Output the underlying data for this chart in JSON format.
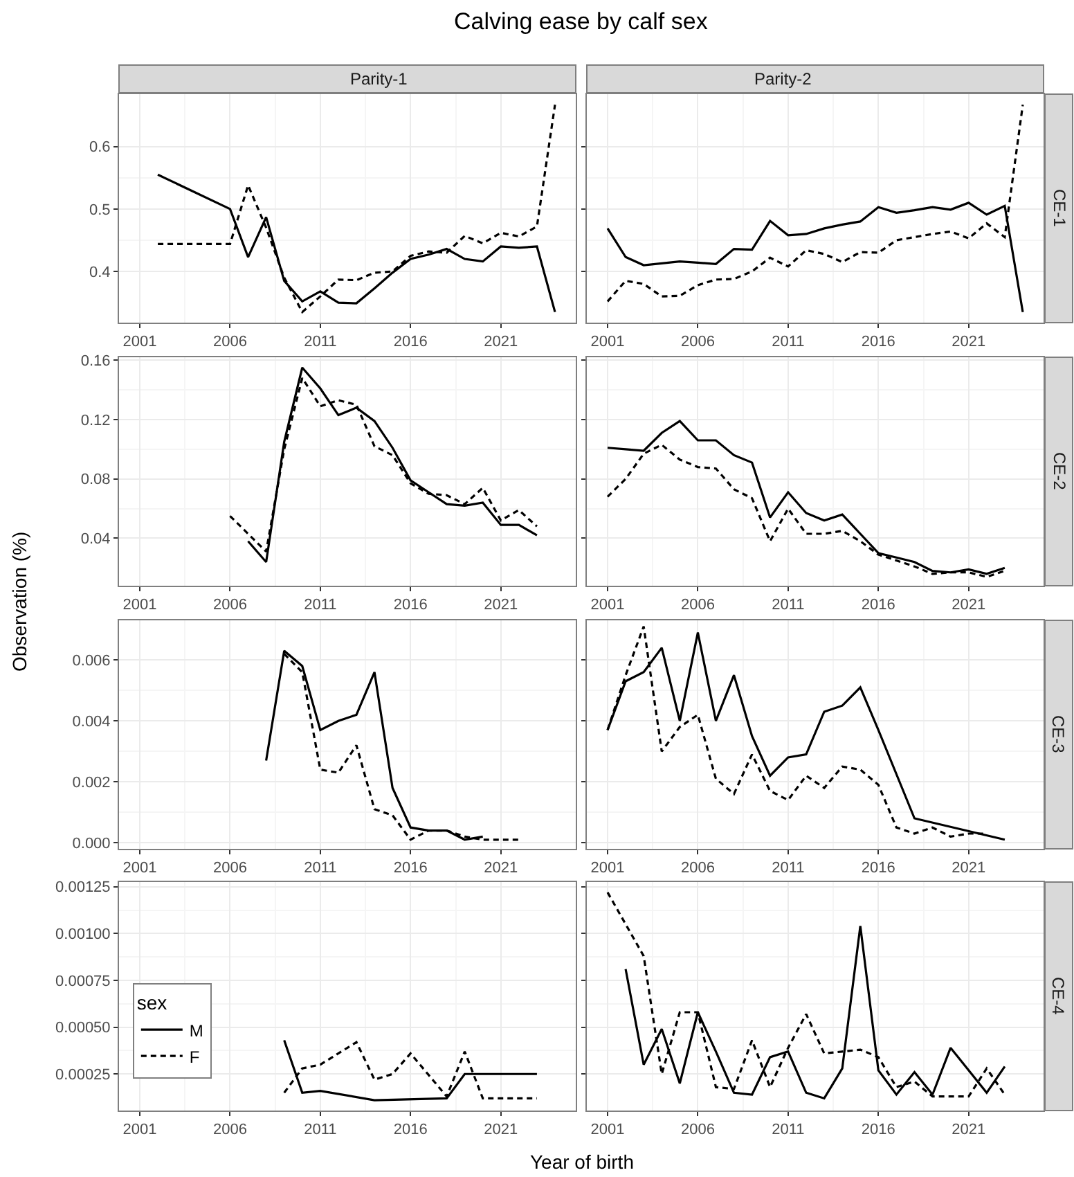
{
  "chart_data": [
    {
      "type": "other",
      "title": "Calving ease by calf sex",
      "xlabel": "Year of birth",
      "ylabel": "Observation (%)"
    },
    {
      "type": "line",
      "subtitle": "Parity-1",
      "xlim": [
        1999.85,
        2025.15
      ],
      "xticks": [
        2001,
        2006,
        2011,
        2016,
        2021
      ],
      "ylim": [
        0.318,
        0.684
      ],
      "yticks": [
        0.4,
        0.5,
        0.6
      ],
      "grid": true,
      "series": [
        {
          "color": "#000000",
          "line_style": "solid",
          "x": [
            2002,
            2006,
            2007,
            2008,
            2009,
            2010,
            2011,
            2012,
            2013,
            2014,
            2015,
            2016,
            2017,
            2018,
            2019,
            2020,
            2021,
            2022,
            2023,
            2024
          ],
          "values": [
            0.555,
            0.5,
            0.423,
            0.487,
            0.385,
            0.352,
            0.368,
            0.35,
            0.349,
            0.373,
            0.398,
            0.42,
            0.427,
            0.436,
            0.42,
            0.416,
            0.44,
            0.438,
            0.44,
            0.335
          ]
        },
        {
          "color": "#000000",
          "line_style": "dashed",
          "x": [
            2002,
            2006,
            2007,
            2008,
            2009,
            2010,
            2011,
            2012,
            2013,
            2014,
            2015,
            2016,
            2017,
            2018,
            2019,
            2020,
            2021,
            2022,
            2023,
            2024
          ],
          "values": [
            0.444,
            0.444,
            0.538,
            0.47,
            0.39,
            0.335,
            0.36,
            0.387,
            0.386,
            0.398,
            0.4,
            0.425,
            0.432,
            0.43,
            0.457,
            0.445,
            0.462,
            0.456,
            0.472,
            0.667
          ]
        }
      ]
    },
    {
      "type": "line",
      "subtitle": "Parity-2",
      "y2label": "CE-1",
      "xlim": [
        1999.85,
        2025.15
      ],
      "xticks": [
        2001,
        2006,
        2011,
        2016,
        2021
      ],
      "ylim": [
        0.318,
        0.684
      ],
      "yticks": [
        0.4,
        0.5,
        0.6
      ],
      "grid": true,
      "tick_labels": "x",
      "series": [
        {
          "color": "#000000",
          "line_style": "solid",
          "x": [
            2001,
            2002,
            2003,
            2004,
            2005,
            2006,
            2007,
            2008,
            2009,
            2010,
            2011,
            2012,
            2013,
            2014,
            2015,
            2016,
            2017,
            2018,
            2019,
            2020,
            2021,
            2022,
            2023,
            2024
          ],
          "values": [
            0.469,
            0.423,
            0.41,
            0.413,
            0.416,
            0.414,
            0.412,
            0.436,
            0.435,
            0.481,
            0.458,
            0.46,
            0.469,
            0.475,
            0.48,
            0.503,
            0.494,
            0.498,
            0.503,
            0.499,
            0.51,
            0.491,
            0.505,
            0.335
          ]
        },
        {
          "color": "#000000",
          "line_style": "dashed",
          "x": [
            2001,
            2002,
            2003,
            2004,
            2005,
            2006,
            2007,
            2008,
            2009,
            2010,
            2011,
            2012,
            2013,
            2014,
            2015,
            2016,
            2017,
            2018,
            2019,
            2020,
            2021,
            2022,
            2023,
            2024
          ],
          "values": [
            0.352,
            0.385,
            0.38,
            0.36,
            0.361,
            0.378,
            0.387,
            0.388,
            0.4,
            0.422,
            0.408,
            0.434,
            0.428,
            0.415,
            0.431,
            0.43,
            0.45,
            0.455,
            0.46,
            0.464,
            0.453,
            0.477,
            0.455,
            0.667
          ]
        }
      ]
    },
    {
      "type": "line",
      "xlim": [
        1999.85,
        2025.15
      ],
      "xticks": [
        2001,
        2006,
        2011,
        2016,
        2021
      ],
      "ylim": [
        0.008,
        0.162
      ],
      "yticks": [
        0.04,
        0.08,
        0.12,
        0.16
      ],
      "grid": true,
      "series": [
        {
          "color": "#000000",
          "line_style": "solid",
          "x": [
            2007,
            2008,
            2009,
            2010,
            2011,
            2012,
            2013,
            2014,
            2015,
            2016,
            2017,
            2018,
            2019,
            2020,
            2021,
            2022,
            2023
          ],
          "values": [
            0.038,
            0.024,
            0.105,
            0.155,
            0.141,
            0.123,
            0.128,
            0.119,
            0.101,
            0.079,
            0.071,
            0.063,
            0.062,
            0.064,
            0.049,
            0.049,
            0.042
          ]
        },
        {
          "color": "#000000",
          "line_style": "dashed",
          "x": [
            2006,
            2007,
            2008,
            2009,
            2010,
            2011,
            2012,
            2013,
            2014,
            2015,
            2016,
            2017,
            2018,
            2019,
            2020,
            2021,
            2022,
            2023
          ],
          "values": [
            0.055,
            0.043,
            0.031,
            0.1,
            0.148,
            0.129,
            0.133,
            0.13,
            0.102,
            0.096,
            0.077,
            0.07,
            0.069,
            0.063,
            0.074,
            0.052,
            0.059,
            0.048
          ]
        }
      ]
    },
    {
      "type": "line",
      "y2label": "CE-2",
      "xlim": [
        1999.85,
        2025.15
      ],
      "xticks": [
        2001,
        2006,
        2011,
        2016,
        2021
      ],
      "ylim": [
        0.008,
        0.162
      ],
      "yticks": [
        0.04,
        0.08,
        0.12,
        0.16
      ],
      "grid": true,
      "tick_labels": "x",
      "series": [
        {
          "color": "#000000",
          "line_style": "solid",
          "x": [
            2001,
            2002,
            2003,
            2004,
            2005,
            2006,
            2007,
            2008,
            2009,
            2010,
            2011,
            2012,
            2013,
            2014,
            2015,
            2016,
            2017,
            2018,
            2019,
            2020,
            2021,
            2022,
            2023
          ],
          "values": [
            0.101,
            0.1,
            0.099,
            0.111,
            0.119,
            0.106,
            0.106,
            0.096,
            0.091,
            0.054,
            0.071,
            0.057,
            0.052,
            0.056,
            0.043,
            0.03,
            0.027,
            0.024,
            0.018,
            0.017,
            0.019,
            0.016,
            0.02
          ]
        },
        {
          "color": "#000000",
          "line_style": "dashed",
          "x": [
            2001,
            2002,
            2003,
            2004,
            2005,
            2006,
            2007,
            2008,
            2009,
            2010,
            2011,
            2012,
            2013,
            2014,
            2015,
            2016,
            2017,
            2018,
            2019,
            2020,
            2021,
            2022,
            2023
          ],
          "values": [
            0.068,
            0.08,
            0.097,
            0.103,
            0.093,
            0.088,
            0.087,
            0.073,
            0.067,
            0.038,
            0.06,
            0.043,
            0.043,
            0.045,
            0.038,
            0.029,
            0.025,
            0.021,
            0.016,
            0.017,
            0.017,
            0.014,
            0.018
          ]
        }
      ]
    },
    {
      "type": "line",
      "xlim": [
        1999.85,
        2025.15
      ],
      "xticks": [
        2001,
        2006,
        2011,
        2016,
        2021
      ],
      "ylim": [
        -0.0002,
        0.0073
      ],
      "yticks": [
        {
          "value": 0,
          "label": "0.000"
        },
        {
          "value": 0.002,
          "label": "0.002"
        },
        {
          "value": 0.004,
          "label": "0.004"
        },
        {
          "value": 0.006,
          "label": "0.006"
        }
      ],
      "grid": true,
      "series": [
        {
          "color": "#000000",
          "line_style": "solid",
          "x": [
            2008,
            2009,
            2010,
            2011,
            2012,
            2013,
            2014,
            2015,
            2016,
            2017,
            2018,
            2019,
            2020
          ],
          "values": [
            0.0027,
            0.0063,
            0.0058,
            0.0037,
            0.004,
            0.0042,
            0.0056,
            0.0018,
            0.0005,
            0.0004,
            0.0004,
            0.0001,
            0.0002
          ]
        },
        {
          "color": "#000000",
          "line_style": "dashed",
          "x": [
            2009,
            2010,
            2011,
            2012,
            2013,
            2014,
            2015,
            2016,
            2017,
            2018,
            2019,
            2020,
            2021,
            2022
          ],
          "values": [
            0.0062,
            0.0056,
            0.0024,
            0.0023,
            0.0032,
            0.0011,
            0.0009,
            0.0001,
            0.0004,
            0.0004,
            0.0002,
            0.0001,
            0.0001,
            0.0001
          ]
        }
      ]
    },
    {
      "type": "line",
      "y2label": "CE-3",
      "xlim": [
        1999.85,
        2025.15
      ],
      "xticks": [
        2001,
        2006,
        2011,
        2016,
        2021
      ],
      "ylim": [
        -0.0002,
        0.0073
      ],
      "yticks": [
        {
          "value": 0,
          "label": null
        },
        {
          "value": 0.002,
          "label": null
        },
        {
          "value": 0.004,
          "label": null
        },
        {
          "value": 0.006,
          "label": null
        }
      ],
      "grid": true,
      "tick_labels": "x",
      "series": [
        {
          "color": "#000000",
          "line_style": "solid",
          "x": [
            2001,
            2002,
            2003,
            2004,
            2005,
            2006,
            2007,
            2008,
            2009,
            2010,
            2011,
            2012,
            2013,
            2014,
            2015,
            2016,
            2018,
            2023
          ],
          "values": [
            0.0037,
            0.0053,
            0.0056,
            0.0064,
            0.004,
            0.0069,
            0.004,
            0.0055,
            0.0035,
            0.0022,
            0.0028,
            0.0029,
            0.0043,
            0.0045,
            0.0051,
            0.0037,
            0.0008,
            0.0001
          ]
        },
        {
          "color": "#000000",
          "line_style": "dashed",
          "x": [
            2001,
            2002,
            2003,
            2004,
            2005,
            2006,
            2007,
            2008,
            2009,
            2010,
            2011,
            2012,
            2013,
            2014,
            2015,
            2016,
            2017,
            2018,
            2019,
            2020,
            2021,
            2022
          ],
          "values": [
            0.0037,
            0.0055,
            0.0071,
            0.003,
            0.0038,
            0.0042,
            0.0021,
            0.0016,
            0.0029,
            0.0017,
            0.0014,
            0.0022,
            0.0018,
            0.0025,
            0.0024,
            0.0019,
            0.0005,
            0.0003,
            0.0005,
            0.0002,
            0.0003,
            0.0003
          ]
        }
      ]
    },
    {
      "type": "line",
      "xlim": [
        1999.85,
        2025.15
      ],
      "xticks": [
        2001,
        2006,
        2011,
        2016,
        2021
      ],
      "ylim": [
        5.5e-05,
        0.001275
      ],
      "yticks": [
        0.00025,
        {
          "value": 0.0005,
          "label": "0.00050"
        },
        0.00075,
        {
          "value": 0.001,
          "label": "0.00100"
        },
        0.00125
      ],
      "grid": true,
      "legend": "bottom left",
      "legend_title": "sex",
      "series": [
        {
          "name": "M",
          "color": "#000000",
          "line_style": "solid",
          "x": [
            2009,
            2010,
            2011,
            2014,
            2018,
            2019,
            2023
          ],
          "values": [
            0.00043,
            0.00015,
            0.00016,
            0.00011,
            0.00012,
            0.00025,
            0.00025
          ]
        },
        {
          "name": "F",
          "color": "#000000",
          "line_style": "dashed",
          "x": [
            2009,
            2010,
            2011,
            2013,
            2014,
            2015,
            2016,
            2018,
            2019,
            2020,
            2023
          ],
          "values": [
            0.00015,
            0.00028,
            0.0003,
            0.00042,
            0.00022,
            0.00025,
            0.00036,
            0.00013,
            0.00037,
            0.00012,
            0.00012
          ]
        }
      ]
    },
    {
      "type": "line",
      "y2label": "CE-4",
      "xlim": [
        1999.85,
        2025.15
      ],
      "xticks": [
        2001,
        2006,
        2011,
        2016,
        2021
      ],
      "ylim": [
        5.5e-05,
        0.001275
      ],
      "yticks": [
        0.00025,
        {
          "value": 0.0005,
          "label": null
        },
        0.00075,
        {
          "value": 0.001,
          "label": null
        },
        0.00125
      ],
      "grid": true,
      "tick_labels": "x",
      "series": [
        {
          "color": "#000000",
          "line_style": "solid",
          "x": [
            2002,
            2003,
            2004,
            2005,
            2006,
            2007,
            2008,
            2009,
            2010,
            2011,
            2012,
            2013,
            2014,
            2015,
            2016,
            2017,
            2018,
            2019,
            2020,
            2022,
            2023
          ],
          "values": [
            0.00081,
            0.0003,
            0.00049,
            0.0002,
            0.00058,
            0.00037,
            0.00015,
            0.00014,
            0.00034,
            0.00037,
            0.00015,
            0.00012,
            0.00028,
            0.00104,
            0.00027,
            0.00014,
            0.00026,
            0.00014,
            0.00039,
            0.00015,
            0.00029
          ]
        },
        {
          "color": "#000000",
          "line_style": "dashed",
          "x": [
            2001,
            2003,
            2004,
            2005,
            2006,
            2007,
            2008,
            2009,
            2010,
            2011,
            2012,
            2013,
            2014,
            2015,
            2016,
            2017,
            2018,
            2019,
            2020,
            2021,
            2022,
            2023
          ],
          "values": [
            0.00122,
            0.00088,
            0.00025,
            0.00058,
            0.00058,
            0.00018,
            0.00017,
            0.00043,
            0.00018,
            0.00039,
            0.00057,
            0.00036,
            0.00037,
            0.00038,
            0.00034,
            0.00018,
            0.00021,
            0.00013,
            0.00013,
            0.00013,
            0.00028,
            0.00014
          ]
        }
      ]
    }
  ]
}
